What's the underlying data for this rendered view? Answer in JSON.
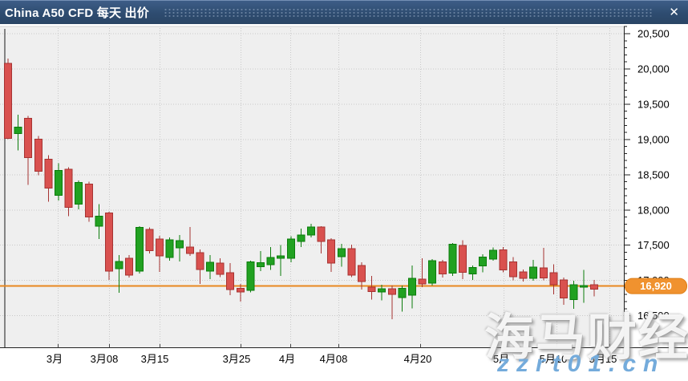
{
  "window": {
    "title": "China A50 CFD 每天 出价",
    "close_glyph": "✕"
  },
  "watermarks": {
    "site_name": "海马财经",
    "site_url": "zzrt01.cn"
  },
  "colors": {
    "titlebar": "#2e4c70",
    "plot_bg": "#efefef",
    "grid": "#c9c9c9",
    "axis": "#222222",
    "up_fill": "#21a121",
    "up_border": "#0b7c0b",
    "down_fill": "#d9514f",
    "down_border": "#a63332",
    "price_line": "#e8871f",
    "badge_fill": "#f0922f",
    "badge_border": "#dd7d15",
    "badge_text": "#ffffff",
    "separator_line": "#1a1a1a"
  },
  "chart_data": {
    "type": "candlestick",
    "title": "China A50 CFD 每天 出价",
    "instrument": "China A50 CFD",
    "timeframe": "每天",
    "price_type": "出价",
    "current_price": 16920,
    "current_price_label": "16,920",
    "y_axis": {
      "ticks": [
        20500,
        20000,
        19500,
        19000,
        18500,
        18000,
        17500,
        17000,
        16500
      ],
      "minor_step": 100,
      "minor_min": 16100,
      "minor_max": 20600,
      "ylim": [
        16050,
        20600
      ]
    },
    "x_axis": {
      "labels": [
        {
          "t": "3月",
          "x": 68
        },
        {
          "t": "3月08",
          "x": 130
        },
        {
          "t": "3月15",
          "x": 193
        },
        {
          "t": "3月25",
          "x": 295
        },
        {
          "t": "4月",
          "x": 358
        },
        {
          "t": "4月08",
          "x": 416
        },
        {
          "t": "4月20",
          "x": 521
        },
        {
          "t": "5月",
          "x": 625
        },
        {
          "t": "5月10",
          "x": 690
        },
        {
          "t": "5月15",
          "x": 752
        }
      ],
      "gridlines": [
        72,
        136,
        199,
        300,
        362,
        422,
        524,
        628,
        694,
        760
      ]
    },
    "candles": [
      [
        10,
        20080,
        20150,
        19005,
        19015
      ],
      [
        22.6,
        19085,
        19350,
        18845,
        19175
      ],
      [
        35.2,
        19300,
        19335,
        18355,
        18740
      ],
      [
        47.8,
        19005,
        19050,
        18490,
        18550
      ],
      [
        60.4,
        18720,
        18775,
        18115,
        18310
      ],
      [
        73,
        18205,
        18660,
        18135,
        18560
      ],
      [
        85.6,
        18580,
        18605,
        17910,
        18035
      ],
      [
        98.2,
        18080,
        18420,
        18010,
        18390
      ],
      [
        110.8,
        18365,
        18400,
        17830,
        17900
      ],
      [
        123.4,
        17770,
        18080,
        17590,
        17910
      ],
      [
        136,
        17955,
        17975,
        17005,
        17130
      ],
      [
        148.6,
        17165,
        17360,
        16825,
        17270
      ],
      [
        161.2,
        17315,
        17360,
        17040,
        17075
      ],
      [
        173.8,
        17130,
        17770,
        17100,
        17750
      ],
      [
        186.4,
        17725,
        17750,
        17385,
        17420
      ],
      [
        199,
        17590,
        17635,
        17120,
        17350
      ],
      [
        211.6,
        17325,
        17610,
        17280,
        17575
      ],
      [
        224.2,
        17465,
        17645,
        17270,
        17565
      ],
      [
        236.8,
        17475,
        17760,
        17350,
        17385
      ],
      [
        249.4,
        17395,
        17440,
        16950,
        17155
      ],
      [
        262,
        17130,
        17360,
        17020,
        17260
      ],
      [
        274.6,
        17245,
        17315,
        17050,
        17085
      ],
      [
        287.2,
        17110,
        17245,
        16790,
        16870
      ],
      [
        299.8,
        16890,
        16950,
        16700,
        16835
      ],
      [
        312.4,
        16860,
        17280,
        16830,
        17265
      ],
      [
        325,
        17195,
        17415,
        17130,
        17250
      ],
      [
        337.6,
        17225,
        17475,
        17150,
        17325
      ],
      [
        350.2,
        17315,
        17505,
        17065,
        17350
      ],
      [
        362.8,
        17315,
        17625,
        17260,
        17585
      ],
      [
        375.4,
        17555,
        17735,
        17475,
        17645
      ],
      [
        388,
        17645,
        17805,
        17610,
        17760
      ],
      [
        400.6,
        17760,
        17770,
        17385,
        17555
      ],
      [
        413.2,
        17575,
        17600,
        17120,
        17245
      ],
      [
        425.8,
        17340,
        17520,
        17195,
        17450
      ],
      [
        438.4,
        17450,
        17510,
        17050,
        17075
      ],
      [
        451,
        17210,
        17260,
        16870,
        16985
      ],
      [
        463.6,
        16905,
        17065,
        16730,
        16845
      ],
      [
        476.2,
        16835,
        16940,
        16720,
        16880
      ],
      [
        488.8,
        16880,
        16925,
        16450,
        16800
      ],
      [
        501.4,
        16755,
        16925,
        16560,
        16890
      ],
      [
        514,
        16790,
        17210,
        16605,
        17030
      ],
      [
        526.6,
        17020,
        17315,
        16905,
        16950
      ],
      [
        539.2,
        16960,
        17305,
        16925,
        17280
      ],
      [
        551.8,
        17265,
        17290,
        17040,
        17095
      ],
      [
        564.4,
        17105,
        17530,
        17065,
        17515
      ],
      [
        577,
        17495,
        17570,
        17020,
        17115
      ],
      [
        589.6,
        17090,
        17210,
        17005,
        17185
      ],
      [
        602.2,
        17205,
        17370,
        17115,
        17330
      ],
      [
        614.8,
        17305,
        17470,
        17280,
        17430
      ],
      [
        627.4,
        17435,
        17475,
        17115,
        17150
      ],
      [
        640,
        17265,
        17330,
        17000,
        17055
      ],
      [
        652.6,
        17120,
        17155,
        16985,
        17030
      ],
      [
        665.2,
        17030,
        17290,
        16995,
        17190
      ],
      [
        677.8,
        17180,
        17460,
        17000,
        17035
      ],
      [
        690.4,
        17110,
        17230,
        16805,
        16940
      ],
      [
        703,
        17005,
        17040,
        16655,
        16750
      ],
      [
        715.6,
        16730,
        16995,
        16600,
        16940
      ],
      [
        728.2,
        16905,
        17150,
        16685,
        16930
      ],
      [
        740.8,
        16940,
        17005,
        16775,
        16875
      ]
    ]
  }
}
